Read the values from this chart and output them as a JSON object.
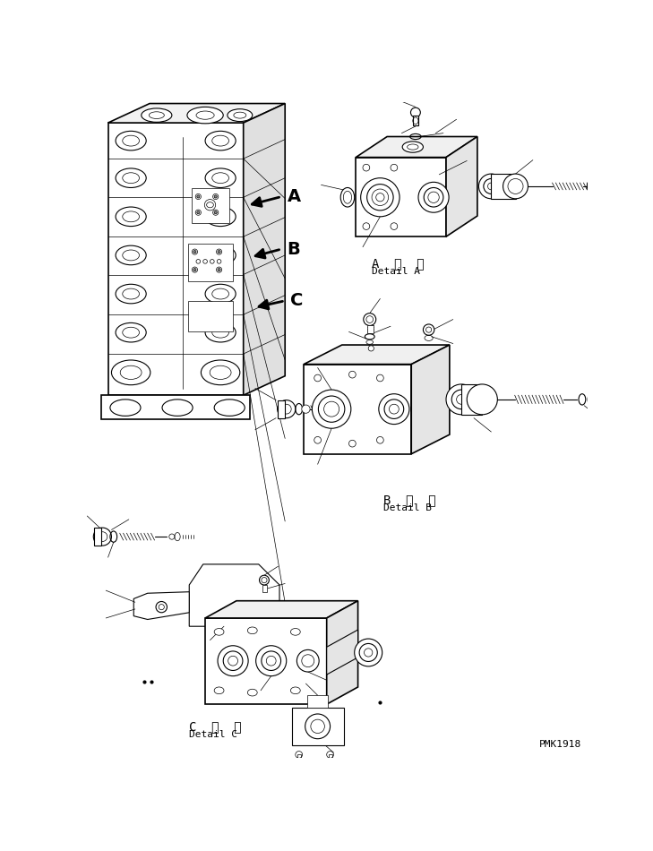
{
  "background_color": "#ffffff",
  "line_color": "#000000",
  "figure_width": 7.29,
  "figure_height": 9.5,
  "dpi": 100,
  "labels": {
    "detail_A_japanese": "A  詳  細",
    "detail_A_english": "Detail A",
    "detail_B_japanese": "B  詳  細",
    "detail_B_english": "Detail B",
    "detail_C_japanese": "C  詳  細",
    "detail_C_english": "Detail C",
    "label_A": "A",
    "label_B": "B",
    "label_C": "C",
    "part_number": "PMK1918"
  },
  "font_sizes": {
    "label_ABC": 14,
    "detail_label_jp": 10,
    "detail_label_en": 8,
    "part_number": 8
  }
}
